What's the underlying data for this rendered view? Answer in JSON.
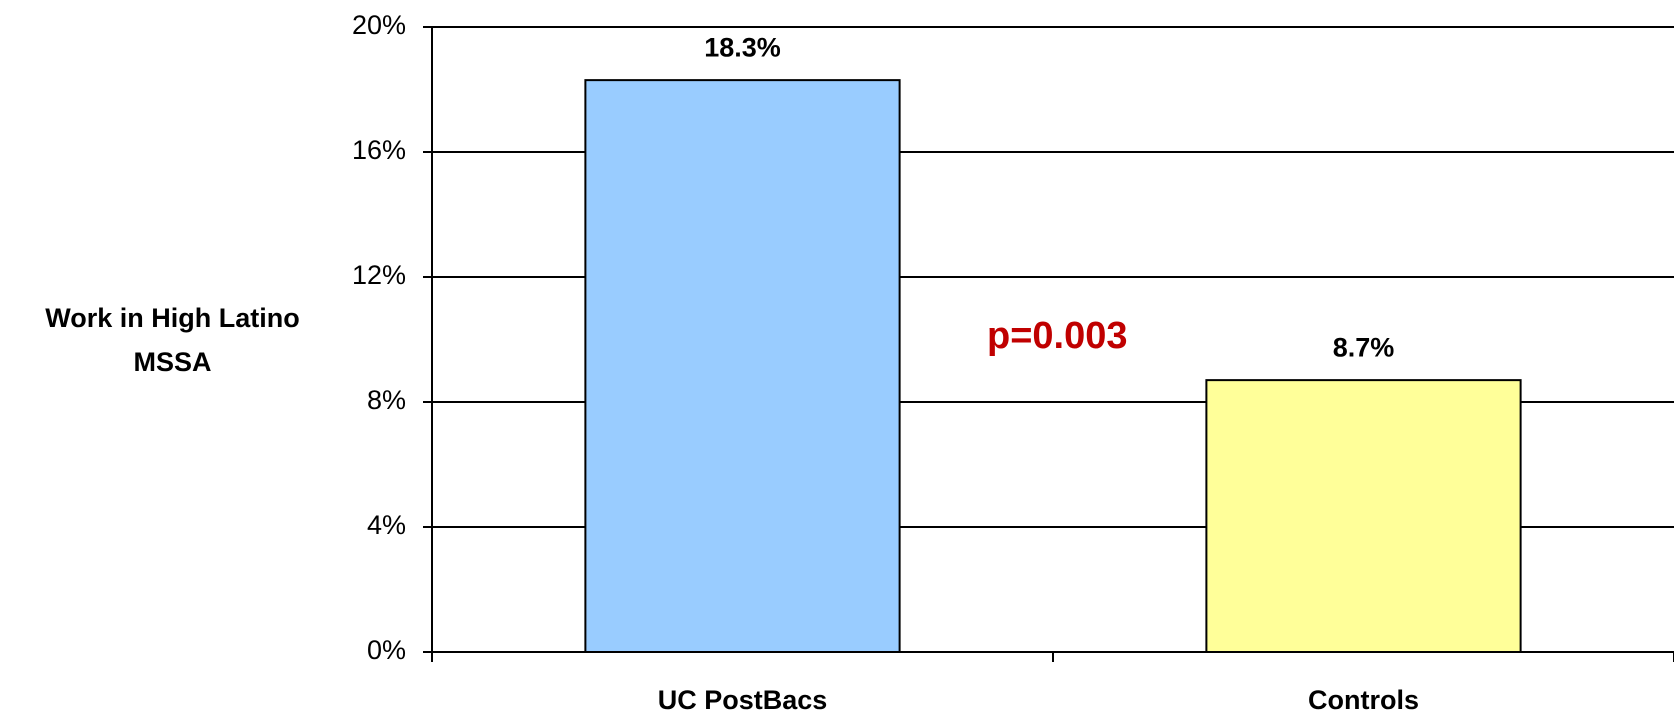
{
  "chart_data": {
    "type": "bar",
    "ylabel": "Work in High Latino MSSA",
    "annotation": "p=0.003",
    "categories": [
      "UC PostBacs",
      "Controls"
    ],
    "values": [
      18.3,
      8.7
    ],
    "value_labels": [
      "18.3%",
      "8.7%"
    ],
    "colors": [
      "#99ccff",
      "#ffff99"
    ],
    "ylim": [
      0,
      20
    ],
    "yticks": [
      {
        "value": 0,
        "label": "0%"
      },
      {
        "value": 4,
        "label": "4%"
      },
      {
        "value": 8,
        "label": "8%"
      },
      {
        "value": 12,
        "label": "12%"
      },
      {
        "value": 16,
        "label": "16%"
      },
      {
        "value": 20,
        "label": "20%"
      }
    ],
    "grid": true
  }
}
